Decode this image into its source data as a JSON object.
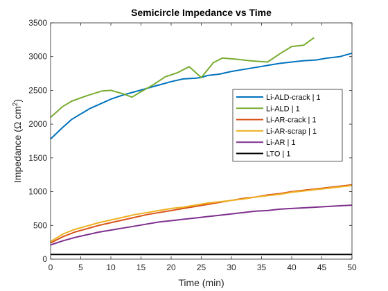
{
  "chart_data": {
    "type": "line",
    "title": "Semicircle Impedance vs Time",
    "xlabel": "Time (min)",
    "ylabel_main": "Impedance (Ω cm",
    "ylabel_sup": "2",
    "ylabel_end": ")",
    "xlim": [
      0,
      50
    ],
    "ylim": [
      0,
      3500
    ],
    "xticks": [
      0,
      5,
      10,
      15,
      20,
      25,
      30,
      35,
      40,
      45,
      50
    ],
    "yticks": [
      0,
      500,
      1000,
      1500,
      2000,
      2500,
      3000,
      3500
    ],
    "grid": false,
    "legend_position": "center-right",
    "series": [
      {
        "name": "Li-ALD-crack   |   1",
        "color": "#0072BD",
        "x": [
          0,
          2,
          3.5,
          5,
          6.5,
          8,
          10,
          12,
          14,
          16,
          18,
          20,
          22,
          24,
          25,
          26,
          28,
          30,
          32,
          34,
          36,
          38,
          40,
          42,
          44,
          46,
          48,
          50
        ],
        "y": [
          1780,
          1950,
          2070,
          2150,
          2230,
          2290,
          2370,
          2430,
          2480,
          2530,
          2580,
          2630,
          2670,
          2680,
          2690,
          2720,
          2740,
          2780,
          2810,
          2840,
          2870,
          2900,
          2920,
          2940,
          2950,
          2980,
          3000,
          3050
        ]
      },
      {
        "name": "Li-ALD   |   1",
        "color": "#77AC30",
        "x": [
          0,
          2,
          3.5,
          6,
          8.5,
          10,
          12,
          13.5,
          15,
          17,
          19,
          21,
          23,
          25,
          27,
          28.5,
          31,
          33,
          36,
          38,
          40,
          42,
          43.7
        ],
        "y": [
          2100,
          2260,
          2340,
          2420,
          2490,
          2500,
          2450,
          2400,
          2480,
          2580,
          2700,
          2760,
          2850,
          2690,
          2910,
          2980,
          2960,
          2940,
          2920,
          3040,
          3150,
          3170,
          3280
        ]
      },
      {
        "name": "Li-AR-crack   |   1",
        "color": "#D95319",
        "x": [
          0,
          2,
          4,
          6,
          8,
          10,
          12,
          14,
          16,
          18,
          20,
          22,
          24,
          26,
          28,
          30,
          32,
          34,
          36,
          38,
          40,
          42,
          44,
          46,
          48,
          50
        ],
        "y": [
          240,
          330,
          400,
          450,
          500,
          540,
          580,
          620,
          660,
          690,
          720,
          750,
          780,
          810,
          840,
          870,
          900,
          920,
          950,
          970,
          1000,
          1020,
          1040,
          1060,
          1080,
          1100
        ]
      },
      {
        "name": "Li-AR-scrap   |   1",
        "color": "#EDB120",
        "x": [
          0,
          2,
          4,
          6,
          8,
          10,
          12,
          14,
          16,
          18,
          20,
          22,
          24,
          26,
          28,
          30,
          32,
          34,
          36,
          38,
          40,
          42,
          44,
          46,
          48,
          50
        ],
        "y": [
          260,
          370,
          440,
          490,
          540,
          580,
          620,
          660,
          690,
          720,
          750,
          770,
          800,
          830,
          850,
          870,
          890,
          920,
          940,
          960,
          990,
          1010,
          1030,
          1050,
          1070,
          1090
        ]
      },
      {
        "name": "Li-AR   |   1",
        "color": "#7E2F8E",
        "x": [
          0,
          2,
          4,
          6,
          8,
          10,
          12,
          14,
          16,
          18,
          20,
          22,
          24,
          26,
          28,
          30,
          32,
          34,
          36,
          38,
          40,
          42,
          44,
          46,
          48,
          50
        ],
        "y": [
          210,
          270,
          320,
          360,
          400,
          430,
          460,
          490,
          520,
          550,
          570,
          590,
          610,
          630,
          650,
          670,
          690,
          710,
          720,
          740,
          750,
          760,
          770,
          780,
          790,
          800
        ]
      },
      {
        "name": "LTO   |   1",
        "color": "#000000",
        "x": [
          0,
          50
        ],
        "y": [
          70,
          70
        ]
      }
    ]
  }
}
